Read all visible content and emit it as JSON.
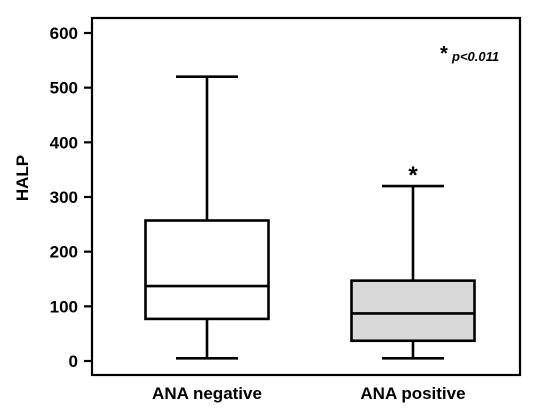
{
  "chart_data": {
    "type": "box",
    "ylabel": "HALP",
    "xlabel": "",
    "ylim": [
      0,
      600
    ],
    "yticks": [
      "0",
      "100",
      "200",
      "300",
      "400",
      "500",
      "600"
    ],
    "categories": [
      "ANA negative",
      "ANA positive"
    ],
    "boxes": [
      {
        "category": "ANA negative",
        "min": 5,
        "q1": 77,
        "median": 137,
        "q3": 257,
        "max": 520,
        "fill": "#ffffff"
      },
      {
        "category": "ANA positive",
        "min": 5,
        "q1": 37,
        "median": 87,
        "q3": 147,
        "max": 320,
        "fill": "#d9d9d9",
        "significance_marker": "*"
      }
    ],
    "annotation": {
      "star": "*",
      "text": "p<0.011"
    }
  }
}
